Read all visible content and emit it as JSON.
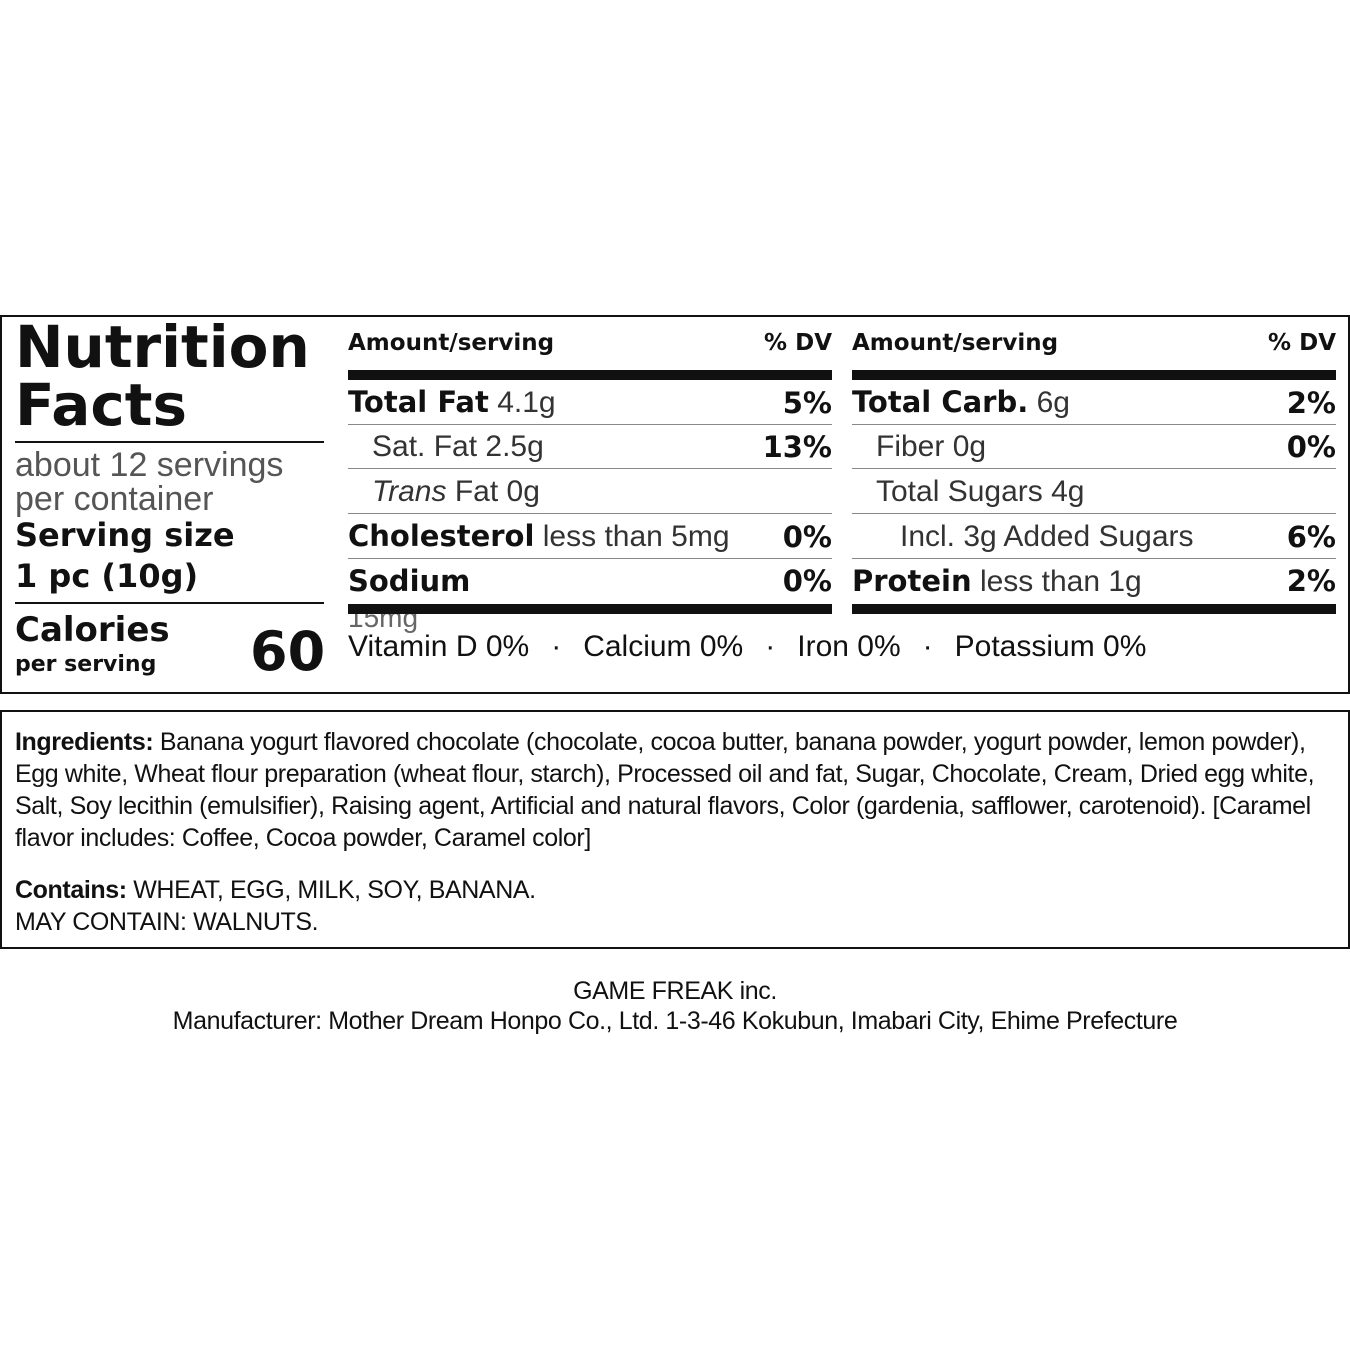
{
  "label": {
    "title": "Nutrition Facts",
    "servings": "about 12 servings per container",
    "serving_size_label": "Serving size",
    "serving_size": "1 pc (10g)",
    "calories_label": "Calories",
    "calories_sub": "per serving",
    "calories": "60",
    "columns": [
      {
        "amount_header": "Amount/serving",
        "dv_header": "% DV",
        "rows": [
          {
            "name": "Total Fat",
            "amount": "4.1g",
            "dv": "5%"
          },
          {
            "name": "Sat. Fat",
            "amount": "2.5g",
            "dv": "13%"
          },
          {
            "name_italic": "Trans",
            "name": "Fat",
            "amount": "0g"
          },
          {
            "name": "Cholesterol",
            "amount": "less than 5mg",
            "dv": "0%"
          },
          {
            "name": "Sodium",
            "amount": "15mg",
            "dv": "0%"
          }
        ]
      },
      {
        "amount_header": "Amount/serving",
        "dv_header": "% DV",
        "rows": [
          {
            "name": "Total Carb.",
            "amount": "6g",
            "dv": "2%"
          },
          {
            "name": "Fiber",
            "amount": "0g",
            "dv": "0%"
          },
          {
            "name": "Total Sugars",
            "amount": "4g"
          },
          {
            "name": "Incl. 3g Added Sugars",
            "dv": "6%"
          },
          {
            "name": "Protein",
            "amount": "less than 1g",
            "dv": "2%"
          }
        ]
      }
    ],
    "vitamins": [
      "Vitamin D 0%",
      "Calcium 0%",
      "Iron 0%",
      "Potassium 0%"
    ]
  },
  "ingredients": {
    "label": "Ingredients:",
    "text": "Banana yogurt flavored chocolate (chocolate, cocoa butter, banana powder, yogurt powder, lemon powder), Egg white, Wheat flour preparation (wheat flour, starch), Processed oil and fat, Sugar, Chocolate, Cream, Dried egg white, Salt, Soy lecithin (emulsifier), Raising agent, Artificial and natural flavors, Color (gardenia, safflower, carotenoid). [Caramel flavor includes: Coffee, Cocoa powder, Caramel color]",
    "contains_label": "Contains:",
    "contains": "WHEAT, EGG, MILK, SOY, BANANA.",
    "may_contain": "MAY CONTAIN: WALNUTS."
  },
  "footer": {
    "company": "GAME FREAK inc.",
    "manufacturer": "Manufacturer: Mother Dream Honpo Co., Ltd. 1-3-46 Kokubun, Imabari City, Ehime Prefecture"
  }
}
